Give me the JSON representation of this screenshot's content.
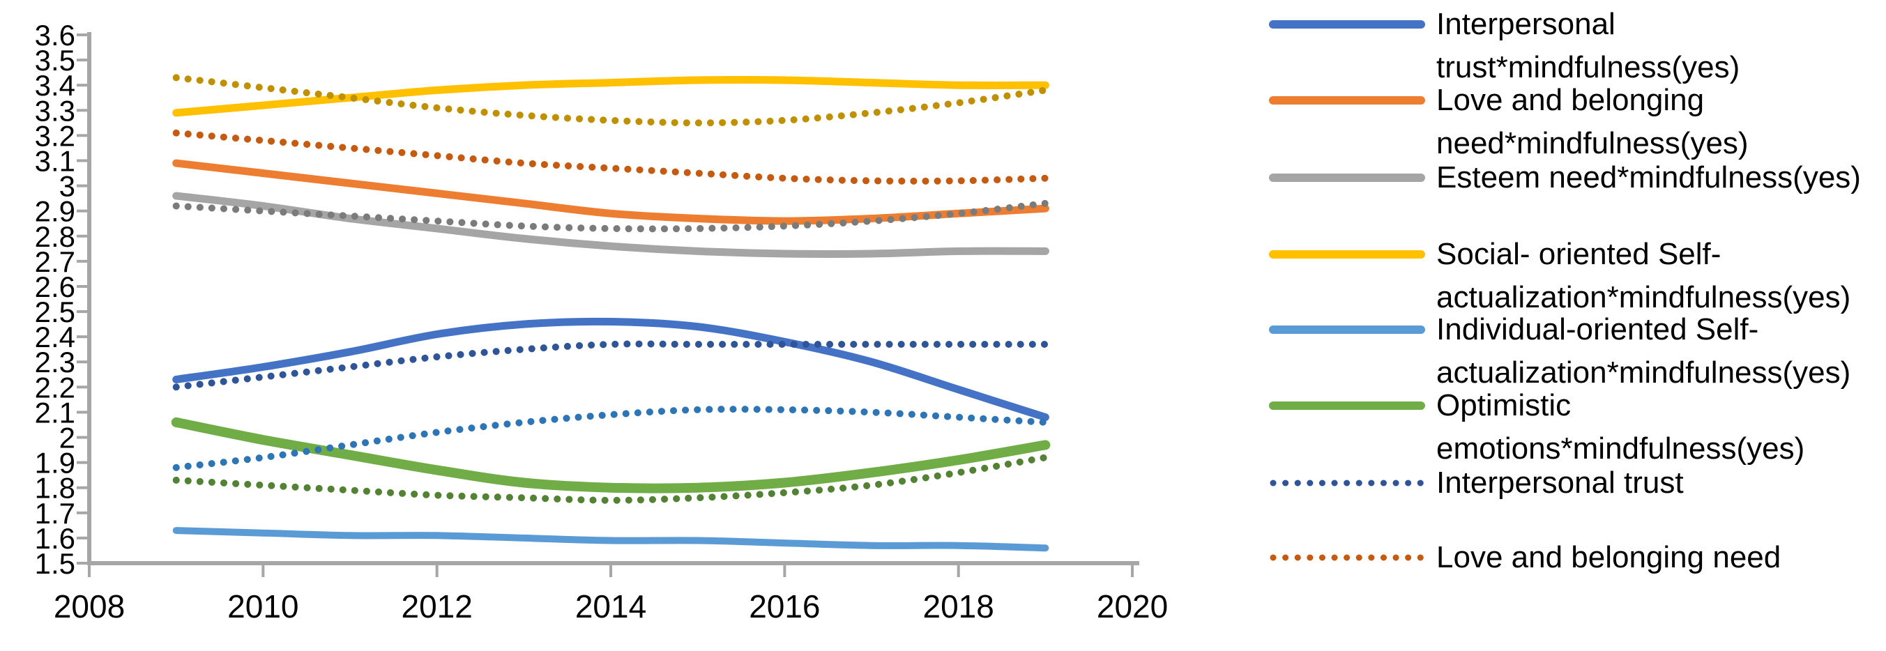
{
  "chart_data": {
    "type": "line",
    "title": "",
    "x": [
      2009,
      2010,
      2011,
      2012,
      2013,
      2014,
      2015,
      2016,
      2017,
      2018,
      2019
    ],
    "x_axis": {
      "min": 2008,
      "max": 2020,
      "tick_labels": [
        "2008",
        "2010",
        "2012",
        "2014",
        "2016",
        "2018",
        "2020"
      ]
    },
    "y_axis": {
      "min": 1.5,
      "max": 3.6,
      "tick_labels": [
        "3.6",
        "3.5",
        "3.4",
        "3.3",
        "3.2",
        "3.1",
        "3",
        "2.9",
        "2.8",
        "2.7",
        "2.6",
        "2.5",
        "2.4",
        "2.3",
        "2.2",
        "2.1",
        "2",
        "1.9",
        "1.8",
        "1.7",
        "1.6",
        "1.5"
      ]
    },
    "grid": false,
    "legend_position": "right",
    "axis_color": "#A6A6A6",
    "series": [
      {
        "id": "interpersonal-trust-mindfulness-yes",
        "legend_label": "Interpersonal trust*mindfulness(yes)",
        "legend_lines": [
          "Interpersonal",
          "trust*mindfulness(yes)"
        ],
        "in_legend": true,
        "color": "#4472C4",
        "style": "solid",
        "values": [
          2.23,
          2.28,
          2.34,
          2.41,
          2.45,
          2.46,
          2.44,
          2.38,
          2.3,
          2.19,
          2.08
        ]
      },
      {
        "id": "love-belonging-need-mindfulness-yes",
        "legend_label": "Love and belonging need*mindfulness(yes)",
        "legend_lines": [
          "Love and belonging",
          "need*mindfulness(yes)"
        ],
        "in_legend": true,
        "color": "#ED7D31",
        "style": "solid",
        "values": [
          3.09,
          3.05,
          3.01,
          2.97,
          2.93,
          2.89,
          2.87,
          2.86,
          2.87,
          2.89,
          2.91
        ]
      },
      {
        "id": "esteem-need-mindfulness-yes",
        "legend_label": "Esteem need*mindfulness(yes)",
        "legend_lines": [
          "Esteem need*mindfulness(yes)"
        ],
        "in_legend": true,
        "color": "#A5A5A5",
        "style": "solid",
        "values": [
          2.96,
          2.92,
          2.87,
          2.83,
          2.79,
          2.76,
          2.74,
          2.73,
          2.73,
          2.74,
          2.74
        ]
      },
      {
        "id": "social-oriented-self-actualization-mindfulness-yes",
        "legend_label": "Social- oriented Self-actualization*mindfulness(yes)",
        "legend_lines": [
          "Social- oriented Self-",
          "actualization*mindfulness(yes)"
        ],
        "in_legend": true,
        "color": "#FFC000",
        "style": "solid",
        "values": [
          3.29,
          3.32,
          3.35,
          3.38,
          3.4,
          3.41,
          3.42,
          3.42,
          3.41,
          3.4,
          3.4
        ]
      },
      {
        "id": "individual-oriented-self-actualization-mindfulness-yes",
        "legend_label": "Individual-oriented Self-actualization*mindfulness(yes)",
        "legend_lines": [
          "Individual-oriented Self-",
          "actualization*mindfulness(yes)"
        ],
        "in_legend": true,
        "color": "#5B9BD5",
        "style": "solid",
        "values": [
          1.63,
          1.62,
          1.61,
          1.61,
          1.6,
          1.59,
          1.59,
          1.58,
          1.57,
          1.57,
          1.56
        ]
      },
      {
        "id": "optimistic-emotions-mindfulness-yes",
        "legend_label": "Optimistic emotions*mindfulness(yes)",
        "legend_lines": [
          "Optimistic",
          "emotions*mindfulness(yes)"
        ],
        "in_legend": true,
        "color": "#70AD47",
        "style": "solid",
        "values": [
          2.06,
          1.99,
          1.93,
          1.87,
          1.82,
          1.8,
          1.8,
          1.82,
          1.86,
          1.91,
          1.97
        ]
      },
      {
        "id": "interpersonal-trust",
        "legend_label": "Interpersonal trust",
        "legend_lines": [
          "Interpersonal trust"
        ],
        "in_legend": true,
        "color": "#2F5597",
        "style": "dotted",
        "values": [
          2.2,
          2.24,
          2.28,
          2.32,
          2.35,
          2.37,
          2.37,
          2.37,
          2.37,
          2.37,
          2.37
        ]
      },
      {
        "id": "love-belonging-need",
        "legend_label": "Love and belonging need",
        "legend_lines": [
          "Love and belonging need"
        ],
        "in_legend": true,
        "color": "#C55A11",
        "style": "dotted",
        "values": [
          3.21,
          3.18,
          3.15,
          3.12,
          3.09,
          3.07,
          3.05,
          3.03,
          3.02,
          3.02,
          3.03
        ]
      },
      {
        "id": "esteem-need-dotted",
        "legend_label": null,
        "legend_lines": [],
        "in_legend": false,
        "color": "#7B7B7B",
        "style": "dotted",
        "values": [
          2.92,
          2.9,
          2.88,
          2.86,
          2.84,
          2.83,
          2.83,
          2.84,
          2.86,
          2.89,
          2.93
        ]
      },
      {
        "id": "social-oriented-self-actualization-dotted",
        "legend_label": null,
        "legend_lines": [],
        "in_legend": false,
        "color": "#BF9000",
        "style": "dotted",
        "values": [
          3.43,
          3.39,
          3.35,
          3.31,
          3.28,
          3.26,
          3.25,
          3.26,
          3.29,
          3.33,
          3.38
        ]
      },
      {
        "id": "individual-oriented-self-actualization-dotted",
        "legend_label": null,
        "legend_lines": [],
        "in_legend": false,
        "color": "#2E75B6",
        "style": "dotted",
        "values": [
          1.88,
          1.92,
          1.97,
          2.02,
          2.06,
          2.09,
          2.11,
          2.11,
          2.1,
          2.08,
          2.06
        ]
      },
      {
        "id": "optimistic-emotions-dotted",
        "legend_label": null,
        "legend_lines": [],
        "in_legend": false,
        "color": "#548235",
        "style": "dotted",
        "values": [
          1.83,
          1.81,
          1.79,
          1.77,
          1.76,
          1.75,
          1.76,
          1.78,
          1.81,
          1.86,
          1.92
        ]
      }
    ]
  }
}
